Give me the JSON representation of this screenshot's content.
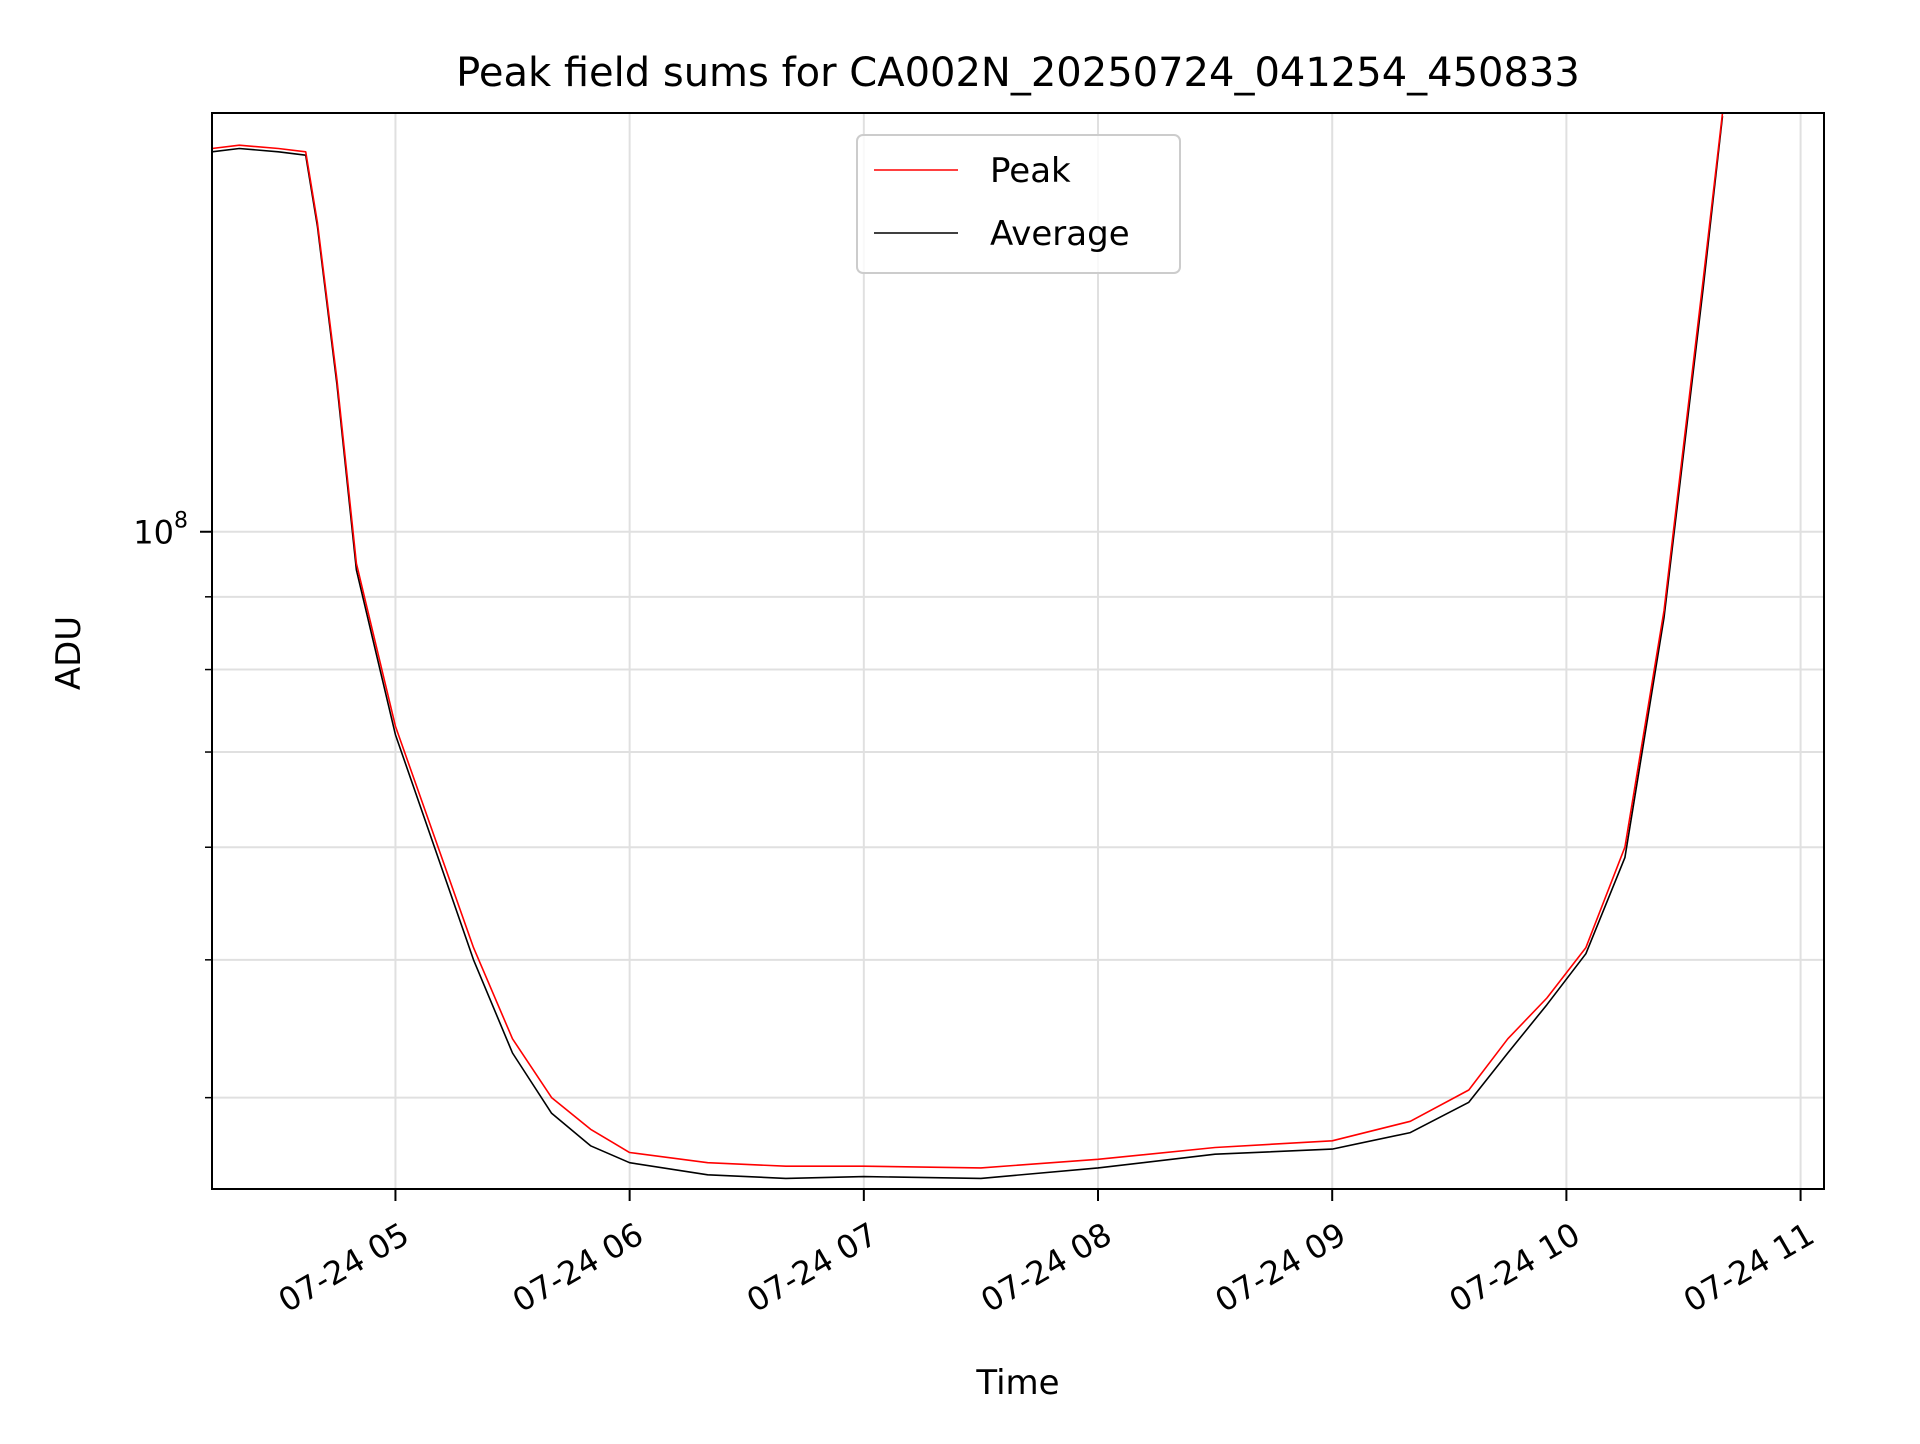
{
  "chart_data": {
    "type": "line",
    "title": "Peak field sums for CA002N_20250724_041254_450833",
    "xlabel": "Time",
    "ylabel": "ADU",
    "x_scale": "time",
    "y_scale": "log",
    "xlim": [
      "2025-07-24 04:13",
      "2025-07-24 11:06"
    ],
    "ylim": [
      34500000,
      197000000
    ],
    "x_tick_labels": [
      "07-24 05",
      "07-24 06",
      "07-24 07",
      "07-24 08",
      "07-24 09",
      "07-24 10",
      "07-24 11"
    ],
    "x_tick_values": [
      "2025-07-24 05:00",
      "2025-07-24 06:00",
      "2025-07-24 07:00",
      "2025-07-24 08:00",
      "2025-07-24 09:00",
      "2025-07-24 10:00",
      "2025-07-24 11:00"
    ],
    "y_major_ticks": [
      100000000
    ],
    "y_major_tick_label_base": "10",
    "y_major_tick_label_exp": "8",
    "y_minor_ticks": [
      40000000,
      50000000,
      60000000,
      70000000,
      80000000,
      90000000
    ],
    "grid": true,
    "legend_position": "top-center",
    "series": [
      {
        "name": "Peak",
        "color": "#ff0000",
        "x": [
          "2025-07-24 04:13",
          "2025-07-24 04:20",
          "2025-07-24 04:30",
          "2025-07-24 04:37",
          "2025-07-24 04:40",
          "2025-07-24 04:45",
          "2025-07-24 04:50",
          "2025-07-24 05:00",
          "2025-07-24 05:10",
          "2025-07-24 05:20",
          "2025-07-24 05:30",
          "2025-07-24 05:40",
          "2025-07-24 05:50",
          "2025-07-24 06:00",
          "2025-07-24 06:20",
          "2025-07-24 06:40",
          "2025-07-24 07:00",
          "2025-07-24 07:30",
          "2025-07-24 08:00",
          "2025-07-24 08:30",
          "2025-07-24 09:00",
          "2025-07-24 09:20",
          "2025-07-24 09:35",
          "2025-07-24 09:45",
          "2025-07-24 09:55",
          "2025-07-24 10:05",
          "2025-07-24 10:15",
          "2025-07-24 10:25",
          "2025-07-24 10:35",
          "2025-07-24 10:40"
        ],
        "values": [
          186000000,
          187000000,
          186000000,
          185000000,
          165000000,
          128000000,
          95000000,
          73000000,
          61000000,
          51000000,
          44000000,
          40000000,
          38000000,
          36600000,
          36000000,
          35800000,
          35800000,
          35700000,
          36200000,
          36900000,
          37300000,
          38500000,
          40500000,
          44000000,
          47000000,
          51000000,
          60000000,
          88000000,
          150000000,
          197000000
        ]
      },
      {
        "name": "Average",
        "color": "#000000",
        "x": [
          "2025-07-24 04:13",
          "2025-07-24 04:20",
          "2025-07-24 04:30",
          "2025-07-24 04:37",
          "2025-07-24 04:40",
          "2025-07-24 04:45",
          "2025-07-24 04:50",
          "2025-07-24 05:00",
          "2025-07-24 05:10",
          "2025-07-24 05:20",
          "2025-07-24 05:30",
          "2025-07-24 05:40",
          "2025-07-24 05:50",
          "2025-07-24 06:00",
          "2025-07-24 06:20",
          "2025-07-24 06:40",
          "2025-07-24 07:00",
          "2025-07-24 07:30",
          "2025-07-24 08:00",
          "2025-07-24 08:30",
          "2025-07-24 09:00",
          "2025-07-24 09:20",
          "2025-07-24 09:35",
          "2025-07-24 09:45",
          "2025-07-24 09:55",
          "2025-07-24 10:05",
          "2025-07-24 10:15",
          "2025-07-24 10:25",
          "2025-07-24 10:35",
          "2025-07-24 10:40"
        ],
        "values": [
          185000000,
          186000000,
          185000000,
          184000000,
          164000000,
          127000000,
          94000000,
          72000000,
          60000000,
          50000000,
          43000000,
          39000000,
          37000000,
          36000000,
          35300000,
          35100000,
          35200000,
          35100000,
          35700000,
          36500000,
          36800000,
          37800000,
          39700000,
          43000000,
          46500000,
          50500000,
          59000000,
          87000000,
          148000000,
          196000000
        ]
      }
    ]
  }
}
